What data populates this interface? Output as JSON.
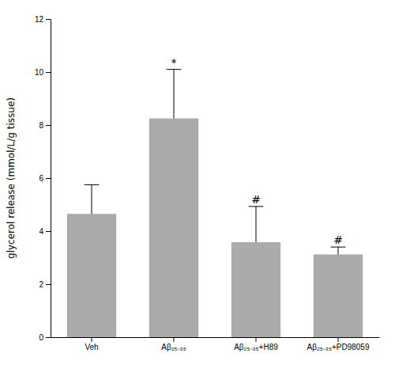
{
  "chart_data": {
    "type": "bar",
    "categories": [
      "Veh",
      "Aβ₂₅₋₃₅",
      "Aβ₂₅₋₃₅+H89",
      "Aβ₂₅₋₃₅+PD98059"
    ],
    "values": [
      4.65,
      8.25,
      3.58,
      3.12
    ],
    "errors": [
      1.1,
      1.85,
      1.35,
      0.28
    ],
    "annotations": [
      null,
      "*",
      "#",
      "#"
    ],
    "color": "#aaaaaa",
    "ylabel": "glycerol release (mmol/L/g tissue)",
    "ylim": [
      0,
      12
    ],
    "yticks": [
      0,
      2,
      4,
      6,
      8,
      10,
      12
    ],
    "grid": false
  }
}
